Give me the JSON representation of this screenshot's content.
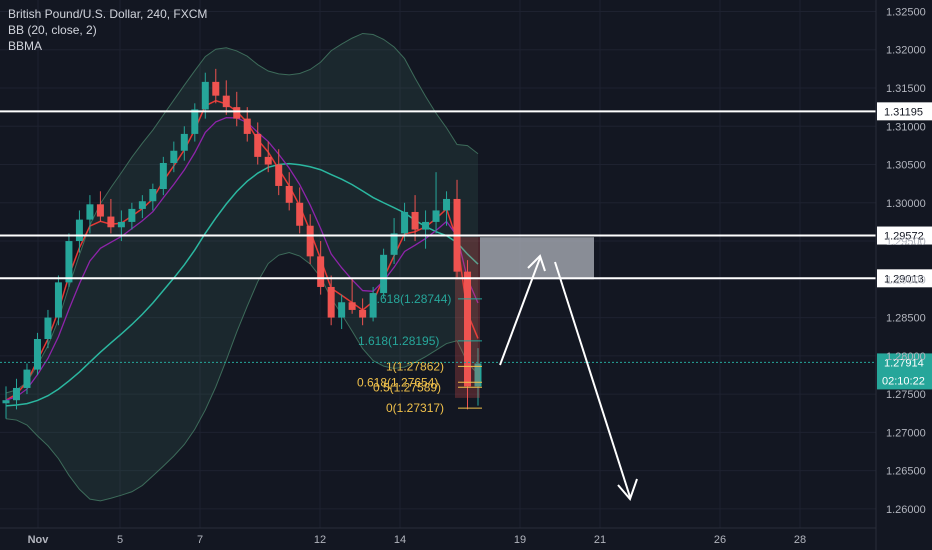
{
  "legend": {
    "symbol_line": "British Pound/U.S. Dollar, 240, FXCM",
    "indicator_bb": "BB (20, close, 2)",
    "indicator_bbma": "BBMA"
  },
  "colors": {
    "background": "#131722",
    "grid": "#1e2230",
    "axis_text": "#b2b5be",
    "candle_up": "#26a69a",
    "candle_down": "#ef5350",
    "bb_band": "#3d6b5a",
    "bb_mid": "#2bb7a0",
    "ma_fast": "#e53935",
    "ma_slow": "#8e24aa",
    "fib_green": "#26a69a",
    "fib_yellow": "#f0c14b",
    "level_line": "#ffffff",
    "price_label_bg": "#26a69a"
  },
  "chart_data": {
    "type": "candlestick",
    "y_ticks": [
      "1.32500",
      "1.32000",
      "1.31500",
      "1.31000",
      "1.30500",
      "1.30000",
      "1.29500",
      "1.29000",
      "1.28500",
      "1.28000",
      "1.27500",
      "1.27000",
      "1.26500",
      "1.26000"
    ],
    "x_ticks": [
      "Nov",
      "5",
      "7",
      "12",
      "14",
      "19",
      "21",
      "26",
      "28"
    ],
    "ylim": [
      1.2575,
      1.3265
    ],
    "horizontal_levels": [
      {
        "price": 1.31195,
        "label": "1.31195"
      },
      {
        "price": 1.29572,
        "label": "1.29572"
      },
      {
        "price": 1.29013,
        "label": "1.29013"
      }
    ],
    "current_price": {
      "price": 1.27914,
      "label": "1.27914",
      "countdown": "02:10:22"
    },
    "fib_levels": [
      {
        "label": "1.618(1.28744)",
        "price": 1.28744,
        "color": "green"
      },
      {
        "label": "1.618(1.28195)",
        "price": 1.28195,
        "color": "green"
      },
      {
        "label": "1(1.27862)",
        "price": 1.27862,
        "color": "yellow"
      },
      {
        "label": "0.618(1.27654)",
        "price": 1.27654,
        "color": "yellow"
      },
      {
        "label": "0.5(1.27589)",
        "price": 1.27589,
        "color": "yellow"
      },
      {
        "label": "0(1.27317)",
        "price": 1.27317,
        "color": "yellow"
      }
    ],
    "zone": {
      "price_top": 1.2955,
      "price_bottom": 1.29
    },
    "candles_ohlc": [
      [
        1.2738,
        1.276,
        1.2718,
        1.2742
      ],
      [
        1.2742,
        1.277,
        1.273,
        1.2758
      ],
      [
        1.2758,
        1.279,
        1.275,
        1.2782
      ],
      [
        1.2782,
        1.283,
        1.2775,
        1.2822
      ],
      [
        1.2822,
        1.286,
        1.281,
        1.285
      ],
      [
        1.285,
        1.2905,
        1.284,
        1.2896
      ],
      [
        1.2896,
        1.296,
        1.289,
        1.295
      ],
      [
        1.295,
        1.299,
        1.2935,
        1.2978
      ],
      [
        1.2978,
        1.301,
        1.296,
        1.2998
      ],
      [
        1.2998,
        1.3015,
        1.2975,
        1.2982
      ],
      [
        1.2982,
        1.3005,
        1.296,
        1.2968
      ],
      [
        1.2968,
        1.299,
        1.295,
        1.2975
      ],
      [
        1.2975,
        1.3,
        1.2965,
        1.2992
      ],
      [
        1.2992,
        1.301,
        1.298,
        1.3002
      ],
      [
        1.3002,
        1.3025,
        1.299,
        1.3018
      ],
      [
        1.3018,
        1.306,
        1.301,
        1.3052
      ],
      [
        1.3052,
        1.308,
        1.304,
        1.3068
      ],
      [
        1.3068,
        1.31,
        1.3055,
        1.309
      ],
      [
        1.309,
        1.313,
        1.308,
        1.3122
      ],
      [
        1.3122,
        1.317,
        1.311,
        1.3158
      ],
      [
        1.3158,
        1.3175,
        1.313,
        1.314
      ],
      [
        1.314,
        1.316,
        1.3115,
        1.3125
      ],
      [
        1.3125,
        1.3145,
        1.31,
        1.311
      ],
      [
        1.311,
        1.3125,
        1.308,
        1.309
      ],
      [
        1.309,
        1.3105,
        1.305,
        1.306
      ],
      [
        1.306,
        1.308,
        1.304,
        1.305
      ],
      [
        1.305,
        1.307,
        1.301,
        1.3022
      ],
      [
        1.3022,
        1.304,
        1.299,
        1.3
      ],
      [
        1.3,
        1.302,
        1.296,
        1.297
      ],
      [
        1.297,
        1.2985,
        1.292,
        1.293
      ],
      [
        1.293,
        1.295,
        1.288,
        1.289
      ],
      [
        1.289,
        1.2905,
        1.284,
        1.285
      ],
      [
        1.285,
        1.288,
        1.2835,
        1.287
      ],
      [
        1.287,
        1.29,
        1.2855,
        1.286
      ],
      [
        1.286,
        1.2875,
        1.284,
        1.285
      ],
      [
        1.285,
        1.289,
        1.2845,
        1.2882
      ],
      [
        1.2882,
        1.294,
        1.2875,
        1.2932
      ],
      [
        1.2932,
        1.298,
        1.292,
        1.296
      ],
      [
        1.296,
        1.3,
        1.295,
        1.2988
      ],
      [
        1.2988,
        1.301,
        1.295,
        1.2965
      ],
      [
        1.2965,
        1.299,
        1.294,
        1.2975
      ],
      [
        1.2975,
        1.304,
        1.296,
        1.299
      ],
      [
        1.299,
        1.3015,
        1.297,
        1.3005
      ],
      [
        1.3005,
        1.303,
        1.29,
        1.291
      ],
      [
        1.291,
        1.2925,
        1.273,
        1.276
      ],
      [
        1.276,
        1.281,
        1.2735,
        1.279
      ]
    ]
  }
}
